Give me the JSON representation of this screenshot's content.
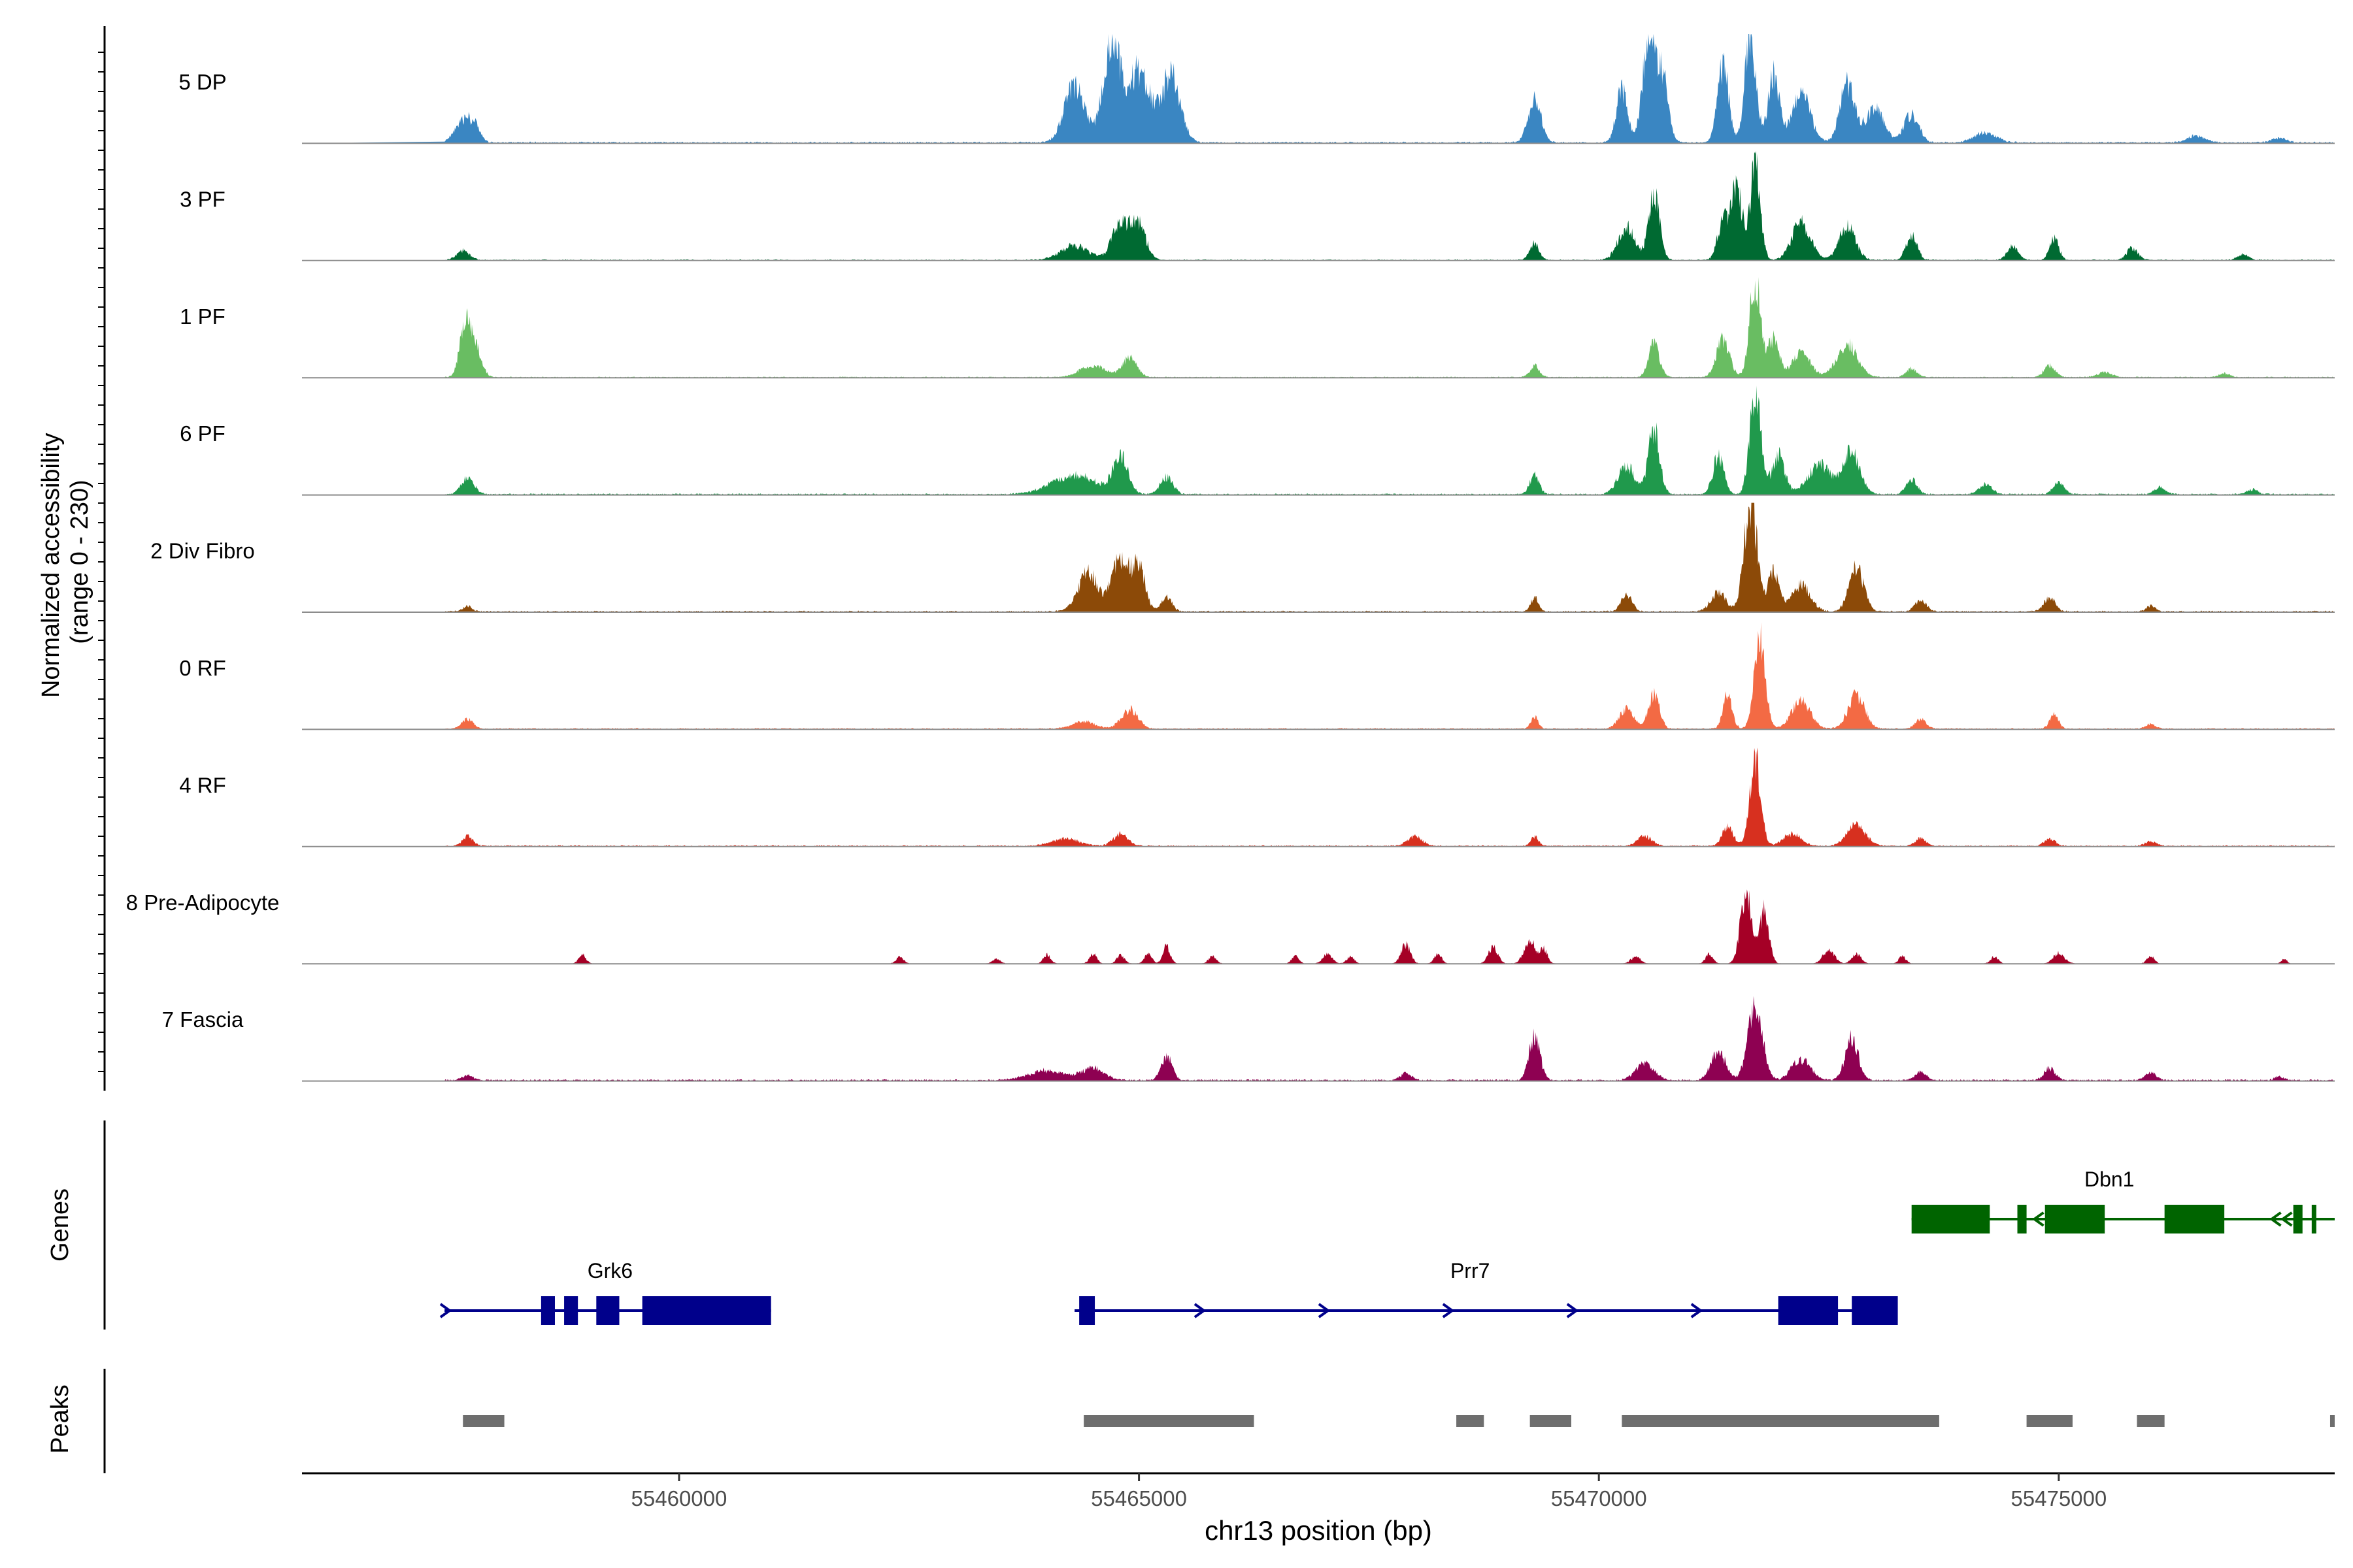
{
  "chart_data": {
    "type": "area",
    "chromosome": "chr13",
    "xlabel": "chr13 position (bp)",
    "ylabel_line1": "Normalized accessibility",
    "ylabel_line2": "(range 0 - 230)",
    "x_range": [
      55455900,
      55478000
    ],
    "x_ticks": [
      {
        "value": 55460000,
        "label": "55460000"
      },
      {
        "value": 55465000,
        "label": "55465000"
      },
      {
        "value": 55470000,
        "label": "55470000"
      },
      {
        "value": 55475000,
        "label": "55475000"
      }
    ],
    "y_range": [
      0,
      230
    ],
    "baseline_color": "#8c8c8c",
    "tracks": [
      {
        "name": "5 DP",
        "color": "#3a86c2",
        "noise": 0.9,
        "seed": 11,
        "peaks": [
          [
            55457650,
            90,
            45
          ],
          [
            55457780,
            60,
            28
          ],
          [
            55464700,
            90,
            210
          ],
          [
            55464300,
            110,
            120
          ],
          [
            55465000,
            120,
            150
          ],
          [
            55465350,
            100,
            140
          ],
          [
            55469300,
            70,
            90
          ],
          [
            55470250,
            60,
            110
          ],
          [
            55470550,
            70,
            230
          ],
          [
            55470700,
            60,
            120
          ],
          [
            55471350,
            60,
            160
          ],
          [
            55471650,
            60,
            230
          ],
          [
            55471900,
            60,
            140
          ],
          [
            55472200,
            100,
            100
          ],
          [
            55472700,
            80,
            120
          ],
          [
            55473000,
            100,
            70
          ],
          [
            55473400,
            80,
            60
          ],
          [
            55474200,
            120,
            20
          ],
          [
            55476500,
            100,
            14
          ],
          [
            55477400,
            80,
            10
          ]
        ]
      },
      {
        "name": "3 PF",
        "color": "#006a32",
        "noise": 0.6,
        "seed": 23,
        "peaks": [
          [
            55457650,
            70,
            20
          ],
          [
            55464300,
            150,
            30
          ],
          [
            55464800,
            90,
            80
          ],
          [
            55465000,
            80,
            70
          ],
          [
            55469300,
            50,
            35
          ],
          [
            55470600,
            60,
            140
          ],
          [
            55470300,
            90,
            70
          ],
          [
            55471350,
            60,
            80
          ],
          [
            55471700,
            55,
            200
          ],
          [
            55471500,
            60,
            150
          ],
          [
            55472200,
            100,
            80
          ],
          [
            55472700,
            90,
            70
          ],
          [
            55473400,
            60,
            50
          ],
          [
            55474500,
            60,
            30
          ],
          [
            55474950,
            50,
            45
          ],
          [
            55475800,
            60,
            25
          ],
          [
            55477000,
            60,
            12
          ]
        ]
      },
      {
        "name": "1 PF",
        "color": "#69bd62",
        "noise": 0.6,
        "seed": 37,
        "peaks": [
          [
            55457680,
            60,
            120
          ],
          [
            55457800,
            60,
            50
          ],
          [
            55464500,
            140,
            25
          ],
          [
            55464900,
            80,
            40
          ],
          [
            55469300,
            50,
            25
          ],
          [
            55470600,
            60,
            70
          ],
          [
            55471350,
            70,
            80
          ],
          [
            55471700,
            60,
            205
          ],
          [
            55471900,
            60,
            80
          ],
          [
            55472200,
            100,
            50
          ],
          [
            55472700,
            110,
            70
          ],
          [
            55473400,
            60,
            18
          ],
          [
            55474900,
            60,
            25
          ],
          [
            55475500,
            80,
            10
          ],
          [
            55476800,
            60,
            8
          ]
        ]
      },
      {
        "name": "6 PF",
        "color": "#20994c",
        "noise": 0.8,
        "seed": 51,
        "peaks": [
          [
            55457700,
            70,
            35
          ],
          [
            55464300,
            250,
            40
          ],
          [
            55464800,
            80,
            75
          ],
          [
            55465300,
            70,
            35
          ],
          [
            55469300,
            50,
            40
          ],
          [
            55470300,
            90,
            60
          ],
          [
            55470600,
            60,
            140
          ],
          [
            55471300,
            60,
            80
          ],
          [
            55471700,
            60,
            215
          ],
          [
            55471950,
            70,
            80
          ],
          [
            55472400,
            130,
            60
          ],
          [
            55472750,
            90,
            90
          ],
          [
            55473400,
            60,
            30
          ],
          [
            55474200,
            70,
            20
          ],
          [
            55475000,
            60,
            25
          ],
          [
            55476100,
            60,
            15
          ],
          [
            55477100,
            60,
            10
          ]
        ]
      },
      {
        "name": "2 Div Fibro",
        "color": "#8c4a08",
        "noise": 0.8,
        "seed": 67,
        "peaks": [
          [
            55457700,
            50,
            12
          ],
          [
            55464450,
            110,
            80
          ],
          [
            55464800,
            90,
            110
          ],
          [
            55465000,
            70,
            90
          ],
          [
            55465300,
            60,
            30
          ],
          [
            55469300,
            40,
            30
          ],
          [
            55470300,
            60,
            35
          ],
          [
            55471300,
            80,
            40
          ],
          [
            55471650,
            70,
            230
          ],
          [
            55471900,
            60,
            80
          ],
          [
            55472200,
            100,
            55
          ],
          [
            55472800,
            80,
            90
          ],
          [
            55473500,
            60,
            25
          ],
          [
            55474900,
            60,
            30
          ],
          [
            55476000,
            50,
            12
          ]
        ]
      },
      {
        "name": "0 RF",
        "color": "#f36a44",
        "noise": 0.7,
        "seed": 79,
        "peaks": [
          [
            55457700,
            60,
            20
          ],
          [
            55464400,
            120,
            15
          ],
          [
            55464900,
            90,
            40
          ],
          [
            55469300,
            40,
            25
          ],
          [
            55470300,
            80,
            40
          ],
          [
            55470600,
            60,
            70
          ],
          [
            55471400,
            50,
            70
          ],
          [
            55471750,
            60,
            190
          ],
          [
            55472200,
            100,
            60
          ],
          [
            55472800,
            90,
            70
          ],
          [
            55473500,
            60,
            20
          ],
          [
            55474950,
            50,
            28
          ],
          [
            55476000,
            50,
            10
          ]
        ]
      },
      {
        "name": "4 RF",
        "color": "#d7301f",
        "noise": 0.7,
        "seed": 97,
        "peaks": [
          [
            55457700,
            60,
            20
          ],
          [
            55464200,
            150,
            15
          ],
          [
            55464800,
            80,
            25
          ],
          [
            55468000,
            80,
            20
          ],
          [
            55469300,
            40,
            20
          ],
          [
            55470500,
            80,
            20
          ],
          [
            55471400,
            60,
            40
          ],
          [
            55471700,
            60,
            180
          ],
          [
            55472100,
            100,
            25
          ],
          [
            55472800,
            100,
            45
          ],
          [
            55473500,
            60,
            15
          ],
          [
            55474900,
            60,
            15
          ],
          [
            55476000,
            60,
            10
          ]
        ]
      },
      {
        "name": "8 Pre-Adipocyte",
        "color": "#a50026",
        "noise": 0.25,
        "seed": 113,
        "peaks": [
          [
            55458950,
            40,
            18
          ],
          [
            55462400,
            40,
            14
          ],
          [
            55463450,
            40,
            10
          ],
          [
            55464000,
            40,
            18
          ],
          [
            55464500,
            40,
            20
          ],
          [
            55464800,
            40,
            18
          ],
          [
            55465100,
            40,
            20
          ],
          [
            55465300,
            40,
            35
          ],
          [
            55465800,
            40,
            16
          ],
          [
            55466700,
            40,
            15
          ],
          [
            55467050,
            50,
            20
          ],
          [
            55467300,
            40,
            15
          ],
          [
            55467900,
            50,
            40
          ],
          [
            55468250,
            40,
            20
          ],
          [
            55468850,
            50,
            35
          ],
          [
            55469250,
            60,
            50
          ],
          [
            55469400,
            40,
            30
          ],
          [
            55470400,
            50,
            15
          ],
          [
            55471200,
            40,
            20
          ],
          [
            55471600,
            60,
            150
          ],
          [
            55471800,
            50,
            110
          ],
          [
            55472500,
            60,
            30
          ],
          [
            55472800,
            50,
            20
          ],
          [
            55473300,
            40,
            15
          ],
          [
            55474300,
            40,
            15
          ],
          [
            55475000,
            60,
            22
          ],
          [
            55476000,
            40,
            16
          ],
          [
            55477450,
            30,
            10
          ]
        ]
      },
      {
        "name": "7 Fascia",
        "color": "#8e0152",
        "noise": 0.9,
        "seed": 131,
        "peaks": [
          [
            55457700,
            60,
            10
          ],
          [
            55464000,
            200,
            20
          ],
          [
            55464500,
            120,
            25
          ],
          [
            55465300,
            60,
            50
          ],
          [
            55467900,
            60,
            15
          ],
          [
            55469300,
            60,
            90
          ],
          [
            55470500,
            100,
            35
          ],
          [
            55471300,
            80,
            60
          ],
          [
            55471700,
            80,
            150
          ],
          [
            55472200,
            100,
            45
          ],
          [
            55472750,
            70,
            90
          ],
          [
            55473500,
            60,
            18
          ],
          [
            55474900,
            60,
            25
          ],
          [
            55476000,
            60,
            15
          ],
          [
            55477400,
            50,
            8
          ]
        ]
      }
    ],
    "genes_label": "Genes",
    "genes": [
      {
        "name": "Grk6",
        "strand": "+",
        "color": "#00008b",
        "start": 55457450,
        "end": 55461000,
        "exons": [
          [
            55458500,
            55458650
          ],
          [
            55458750,
            55458900
          ],
          [
            55459100,
            55459350
          ],
          [
            55459600,
            55461000
          ]
        ],
        "label_at": 55459250
      },
      {
        "name": "Prr7",
        "strand": "+",
        "color": "#00008b",
        "start": 55464300,
        "end": 55473200,
        "exons": [
          [
            55464350,
            55464520
          ],
          [
            55471950,
            55472600
          ],
          [
            55472750,
            55473250
          ]
        ],
        "label_at": 55468600
      },
      {
        "name": "Dbn1",
        "strand": "-",
        "color": "#006400",
        "start": 55473400,
        "end": 55478000,
        "exons": [
          [
            55473400,
            55474250
          ],
          [
            55474550,
            55474650
          ],
          [
            55474850,
            55475500
          ],
          [
            55476150,
            55476800
          ],
          [
            55477550,
            55477650
          ],
          [
            55477750,
            55477800
          ]
        ],
        "label_at": 55475550
      }
    ],
    "peaks_label": "Peaks",
    "peak_color": "#6e6e6e",
    "peak_regions": [
      [
        55457650,
        55458100
      ],
      [
        55464400,
        55466250
      ],
      [
        55468450,
        55468750
      ],
      [
        55469250,
        55469700
      ],
      [
        55470250,
        55473700
      ],
      [
        55474650,
        55475150
      ],
      [
        55475850,
        55476150
      ],
      [
        55477950,
        55478000
      ]
    ]
  }
}
